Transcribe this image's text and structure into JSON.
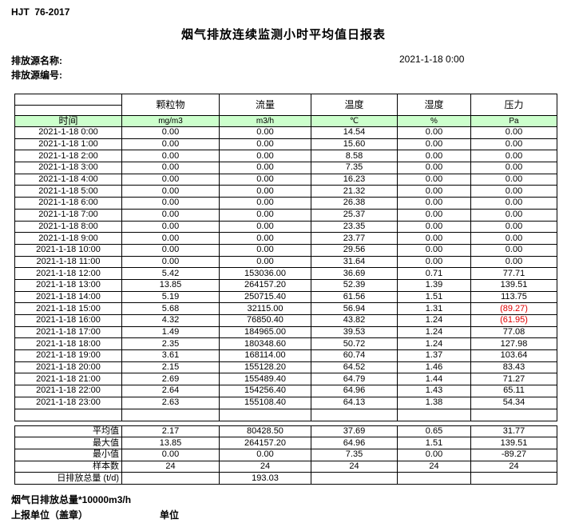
{
  "meta": {
    "standard_code": "HJT  76-2017",
    "title": "烟气排放连续监测小时平均值日报表",
    "source_name_label": "排放源名称:",
    "source_code_label": "排放源编号:",
    "report_datetime": "2021-1-18 0:00"
  },
  "table": {
    "time_header": "时间",
    "columns": [
      {
        "label": "颗粒物",
        "unit": "mg/m3"
      },
      {
        "label": "流量",
        "unit": "m3/h"
      },
      {
        "label": "温度",
        "unit": "℃"
      },
      {
        "label": "湿度",
        "unit": "%"
      },
      {
        "label": "压力",
        "unit": "Pa"
      }
    ],
    "rows": [
      {
        "time": "2021-1-18 0:00",
        "values": [
          "0.00",
          "0.00",
          "14.54",
          "0.00",
          "0.00"
        ]
      },
      {
        "time": "2021-1-18 1:00",
        "values": [
          "0.00",
          "0.00",
          "15.60",
          "0.00",
          "0.00"
        ]
      },
      {
        "time": "2021-1-18 2:00",
        "values": [
          "0.00",
          "0.00",
          "8.58",
          "0.00",
          "0.00"
        ]
      },
      {
        "time": "2021-1-18 3:00",
        "values": [
          "0.00",
          "0.00",
          "7.35",
          "0.00",
          "0.00"
        ]
      },
      {
        "time": "2021-1-18 4:00",
        "values": [
          "0.00",
          "0.00",
          "16.23",
          "0.00",
          "0.00"
        ]
      },
      {
        "time": "2021-1-18 5:00",
        "values": [
          "0.00",
          "0.00",
          "21.32",
          "0.00",
          "0.00"
        ]
      },
      {
        "time": "2021-1-18 6:00",
        "values": [
          "0.00",
          "0.00",
          "26.38",
          "0.00",
          "0.00"
        ]
      },
      {
        "time": "2021-1-18 7:00",
        "values": [
          "0.00",
          "0.00",
          "25.37",
          "0.00",
          "0.00"
        ]
      },
      {
        "time": "2021-1-18 8:00",
        "values": [
          "0.00",
          "0.00",
          "23.35",
          "0.00",
          "0.00"
        ]
      },
      {
        "time": "2021-1-18 9:00",
        "values": [
          "0.00",
          "0.00",
          "23.77",
          "0.00",
          "0.00"
        ]
      },
      {
        "time": "2021-1-18 10:00",
        "values": [
          "0.00",
          "0.00",
          "29.56",
          "0.00",
          "0.00"
        ]
      },
      {
        "time": "2021-1-18 11:00",
        "values": [
          "0.00",
          "0.00",
          "31.64",
          "0.00",
          "0.00"
        ]
      },
      {
        "time": "2021-1-18 12:00",
        "values": [
          "5.42",
          "153036.00",
          "36.69",
          "0.71",
          "77.71"
        ]
      },
      {
        "time": "2021-1-18 13:00",
        "values": [
          "13.85",
          "264157.20",
          "52.39",
          "1.39",
          "139.51"
        ]
      },
      {
        "time": "2021-1-18 14:00",
        "values": [
          "5.19",
          "250715.40",
          "61.56",
          "1.51",
          "113.75"
        ]
      },
      {
        "time": "2021-1-18 15:00",
        "values": [
          "5.68",
          "32115.00",
          "56.94",
          "1.31",
          "(89.27)"
        ]
      },
      {
        "time": "2021-1-18 16:00",
        "values": [
          "4.32",
          "76850.40",
          "43.82",
          "1.24",
          "(61.95)"
        ]
      },
      {
        "time": "2021-1-18 17:00",
        "values": [
          "1.49",
          "184965.00",
          "39.53",
          "1.24",
          "77.08"
        ]
      },
      {
        "time": "2021-1-18 18:00",
        "values": [
          "2.35",
          "180348.60",
          "50.72",
          "1.24",
          "127.98"
        ]
      },
      {
        "time": "2021-1-18 19:00",
        "values": [
          "3.61",
          "168114.00",
          "60.74",
          "1.37",
          "103.64"
        ]
      },
      {
        "time": "2021-1-18 20:00",
        "values": [
          "2.15",
          "155128.20",
          "64.52",
          "1.46",
          "83.43"
        ]
      },
      {
        "time": "2021-1-18 21:00",
        "values": [
          "2.69",
          "155489.40",
          "64.79",
          "1.44",
          "71.27"
        ]
      },
      {
        "time": "2021-1-18 22:00",
        "values": [
          "2.64",
          "154256.40",
          "64.96",
          "1.43",
          "65.11"
        ]
      },
      {
        "time": "2021-1-18 23:00",
        "values": [
          "2.63",
          "155108.40",
          "64.13",
          "1.38",
          "54.34"
        ]
      }
    ],
    "summary": [
      {
        "label": "平均值",
        "values": [
          "2.17",
          "80428.50",
          "37.69",
          "0.65",
          "31.77"
        ]
      },
      {
        "label": "最大值",
        "values": [
          "13.85",
          "264157.20",
          "64.96",
          "1.51",
          "139.51"
        ]
      },
      {
        "label": "最小值",
        "values": [
          "0.00",
          "0.00",
          "7.35",
          "0.00",
          "-89.27"
        ]
      },
      {
        "label": "样本数",
        "values": [
          "24",
          "24",
          "24",
          "24",
          "24"
        ]
      },
      {
        "label": "日排放总量 (t/d)",
        "values": [
          "",
          "193.03",
          "",
          "",
          ""
        ]
      }
    ],
    "colors": {
      "unit_row_background": "#ccffcc",
      "negative_value_color": "#e00000",
      "border_color": "#000000"
    }
  },
  "footer": {
    "note": "烟气日排放总量*10000m3/h",
    "report_unit_label": "上报单位（盖章）",
    "unit_label": "单位"
  }
}
